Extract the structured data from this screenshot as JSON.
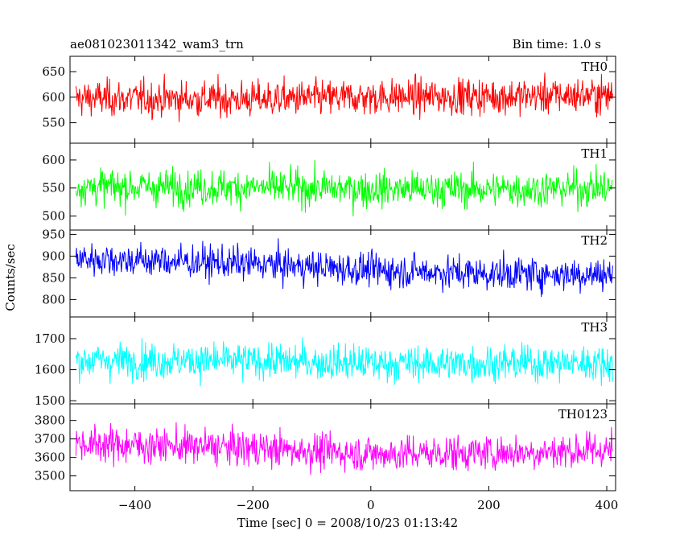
{
  "chart_data": {
    "type": "line",
    "title": "ae081023011342_wam3_trn",
    "bin_time_label": "Bin time: 1.0 s",
    "xlabel": "Time [sec] 0 = 2008/10/23 01:13:42",
    "ylabel": "Counts/sec",
    "xlim": [
      -510,
      415
    ],
    "x_ticks": [
      "−400",
      "−200",
      "0",
      "200",
      "400"
    ],
    "x_tick_values": [
      -400,
      -200,
      0,
      200,
      400
    ],
    "series": [
      {
        "name": "TH0",
        "color": "#ff0000",
        "ylim": [
          510,
          680
        ],
        "mean": 598,
        "amp": 55,
        "y_ticks": [
          550,
          600,
          650
        ],
        "trend": [
          [
            -500,
            598
          ],
          [
            -200,
            596
          ],
          [
            0,
            600
          ],
          [
            200,
            602
          ],
          [
            410,
            604
          ]
        ]
      },
      {
        "name": "TH1",
        "color": "#00ff00",
        "ylim": [
          475,
          630
        ],
        "mean": 550,
        "amp": 50,
        "y_ticks": [
          500,
          550,
          600
        ],
        "trend": [
          [
            -500,
            552
          ],
          [
            -200,
            551
          ],
          [
            0,
            548
          ],
          [
            200,
            548
          ],
          [
            410,
            550
          ]
        ]
      },
      {
        "name": "TH2",
        "color": "#0000ff",
        "ylim": [
          760,
          960
        ],
        "mean": 875,
        "amp": 60,
        "y_ticks": [
          800,
          850,
          900,
          950
        ],
        "trend": [
          [
            -500,
            895
          ],
          [
            -200,
            882
          ],
          [
            0,
            868
          ],
          [
            200,
            860
          ],
          [
            410,
            858
          ]
        ]
      },
      {
        "name": "TH3",
        "color": "#00ffff",
        "ylim": [
          1490,
          1770
        ],
        "mean": 1625,
        "amp": 90,
        "y_ticks": [
          1500,
          1600,
          1700
        ],
        "trend": [
          [
            -500,
            1630
          ],
          [
            -200,
            1628
          ],
          [
            0,
            1620
          ],
          [
            200,
            1620
          ],
          [
            410,
            1622
          ]
        ]
      },
      {
        "name": "TH0123",
        "color": "#ff00ff",
        "ylim": [
          3420,
          3890
        ],
        "mean": 3650,
        "amp": 150,
        "y_ticks": [
          3500,
          3600,
          3700,
          3800
        ],
        "trend": [
          [
            -500,
            3675
          ],
          [
            -200,
            3650
          ],
          [
            0,
            3620
          ],
          [
            200,
            3625
          ],
          [
            410,
            3640
          ]
        ]
      }
    ],
    "grid": false,
    "legend": "per-panel label top-right"
  }
}
